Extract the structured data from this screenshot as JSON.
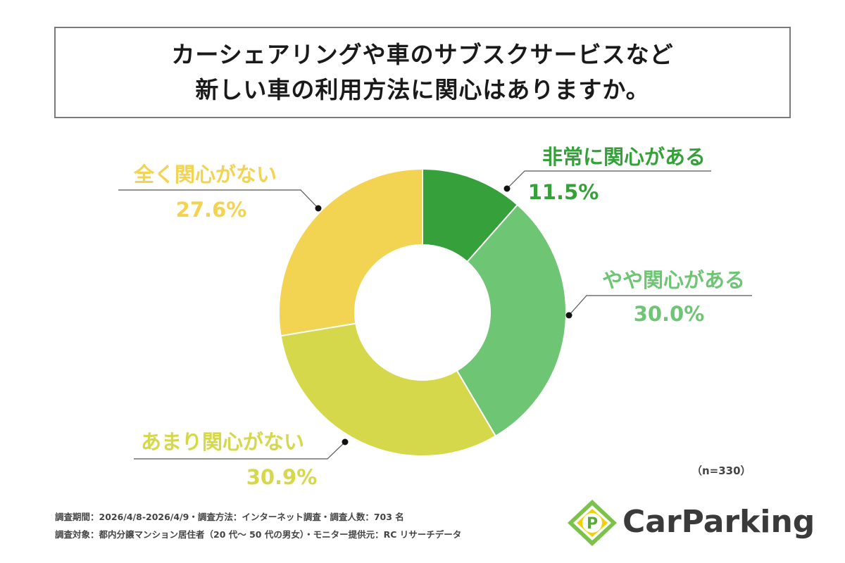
{
  "title": {
    "line1": "カーシェアリングや車のサブスクサービスなど",
    "line2": "新しい車の利用方法に関心はありますか。"
  },
  "chart_data": {
    "type": "pie",
    "donut": true,
    "slices": [
      {
        "label": "非常に関心がある",
        "value": 11.5,
        "value_text": "11.5%",
        "color": "#36a13a"
      },
      {
        "label": "やや関心がある",
        "value": 30.0,
        "value_text": "30.0%",
        "color": "#6ec574"
      },
      {
        "label": "あまり関心がない",
        "value": 30.9,
        "value_text": "30.9%",
        "color": "#d4d84a"
      },
      {
        "label": "全く関心がない",
        "value": 27.6,
        "value_text": "27.6%",
        "color": "#f2d352"
      }
    ]
  },
  "sample_note": "（n=330）",
  "footnotes": {
    "line1": "調査期間：2026/4/8-2026/4/9・調査方法：インターネット調査・調査人数：703 名",
    "line2": "調査対象：都内分譲マンション居住者（20 代～ 50 代の男女）・モニター提供元：RC リサーチデータ"
  },
  "logo": {
    "text": "CarParking",
    "icon_letter": "P",
    "icon_name": "parking-sign-icon"
  }
}
